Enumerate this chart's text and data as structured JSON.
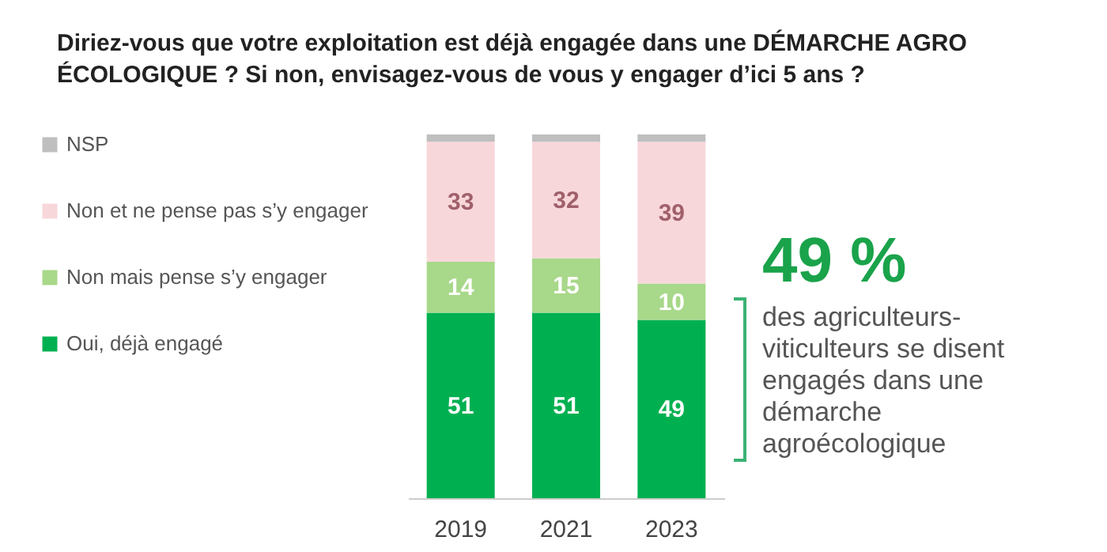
{
  "chart_data": {
    "type": "bar",
    "stacked": true,
    "title": "Diriez-vous que votre exploitation est déjà engagée dans une DÉMARCHE AGRO ÉCOLOGIQUE ? Si non, envisagez-vous de vous y engager d’ici 5 ans ?",
    "categories": [
      "2019",
      "2021",
      "2023"
    ],
    "series": [
      {
        "name": "Oui, déjà  engagé",
        "color": "#00b050",
        "values": [
          51,
          51,
          49
        ],
        "value_labels": [
          "51",
          "51",
          "49"
        ]
      },
      {
        "name": "Non mais pense s’y engager",
        "color": "#a8d88a",
        "values": [
          14,
          15,
          10
        ],
        "value_labels": [
          "14",
          "15",
          "10"
        ]
      },
      {
        "name": "Non et ne pense pas s’y engager",
        "color": "#f8d7db",
        "values": [
          33,
          32,
          39
        ],
        "value_labels": [
          "33",
          "32",
          "39"
        ]
      },
      {
        "name": "NSP",
        "color": "#bfbfbf",
        "values": [
          2,
          2,
          2
        ],
        "value_labels": [
          null,
          null,
          null
        ]
      }
    ],
    "legend": "left",
    "tick_labels": "x",
    "annotations": [
      "49 %",
      "des agriculteurs-viticulteurs se disent engagés dans une démarche agroécologique"
    ]
  }
}
